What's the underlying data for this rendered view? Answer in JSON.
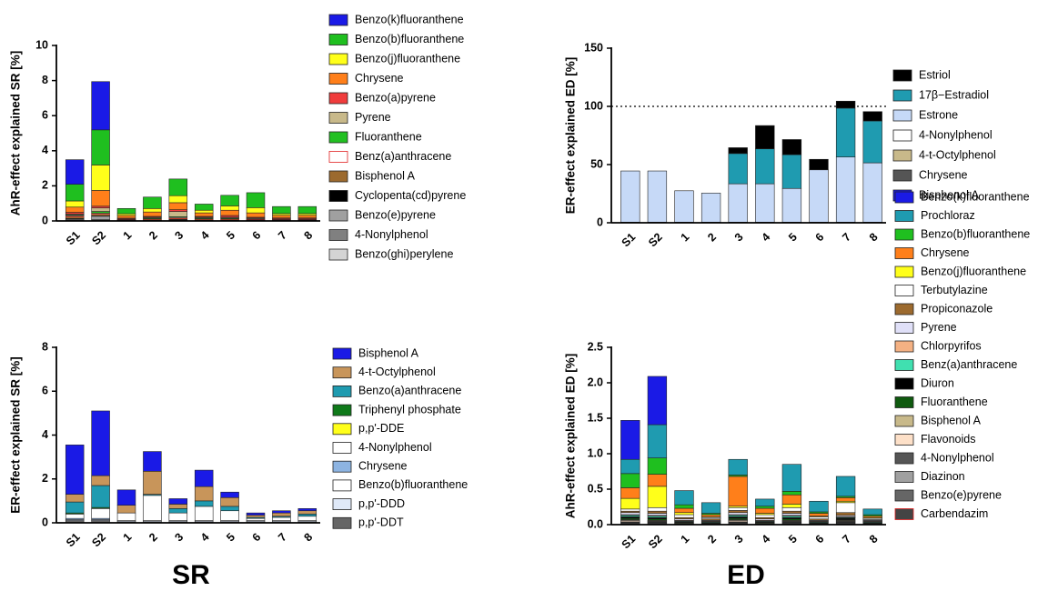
{
  "panel_labels": [
    "SR",
    "ED"
  ],
  "chart_data": [
    {
      "type": "bar",
      "stacked": true,
      "ylabel": "AhR-effect explained SR [%]",
      "categories": [
        "S1",
        "S2",
        "1",
        "2",
        "3",
        "4",
        "5",
        "6",
        "7",
        "8"
      ],
      "ylim": [
        0,
        10
      ],
      "yticks": [
        0,
        2,
        4,
        6,
        8,
        10
      ],
      "series": [
        {
          "name": "Benzo(k)fluoranthene",
          "color": "#1a1ae6",
          "values": [
            1.4,
            2.75,
            0,
            0,
            0,
            0,
            0,
            0,
            0,
            0
          ]
        },
        {
          "name": "Benzo(b)fluoranthene",
          "color": "#1fbf1f",
          "values": [
            0.95,
            2.0,
            0.3,
            0.65,
            0.95,
            0.35,
            0.6,
            0.85,
            0.4,
            0.4
          ]
        },
        {
          "name": "Benzo(j)fluoranthene",
          "color": "#ffff1a",
          "values": [
            0.35,
            1.45,
            0.1,
            0.2,
            0.4,
            0.15,
            0.25,
            0.3,
            0.1,
            0.1
          ]
        },
        {
          "name": "Chrysene",
          "color": "#ff7f1a",
          "values": [
            0.3,
            0.9,
            0.15,
            0.25,
            0.4,
            0.2,
            0.3,
            0.25,
            0.15,
            0.15
          ]
        },
        {
          "name": "Benzo(a)pyrene",
          "color": "#f03c3c",
          "values": [
            0.1,
            0.1,
            0.05,
            0.05,
            0.1,
            0.05,
            0.1,
            0.05,
            0.05,
            0.05
          ]
        },
        {
          "name": "Pyrene",
          "color": "#c8b98a",
          "values": [
            0.05,
            0.2,
            0.02,
            0.05,
            0.3,
            0.05,
            0.05,
            0.05,
            0.02,
            0.02
          ]
        },
        {
          "name": "Fluoranthene",
          "color": "#22c022",
          "values": [
            0.05,
            0.1,
            0.01,
            0.05,
            0.05,
            0.05,
            0.05,
            0.02,
            0.02,
            0.02
          ]
        },
        {
          "name": "Benz(a)anthracene",
          "color": "#ffffff",
          "edgecolor": "#e02020",
          "values": [
            0.05,
            0.05,
            0.01,
            0.02,
            0.05,
            0.02,
            0.02,
            0.02,
            0.01,
            0.01
          ]
        },
        {
          "name": "Bisphenol A",
          "color": "#9c6a2e",
          "values": [
            0.1,
            0.1,
            0.03,
            0.05,
            0.05,
            0.05,
            0.05,
            0.03,
            0.03,
            0.03
          ]
        },
        {
          "name": "Cyclopenta(cd)pyrene",
          "color": "#000000",
          "values": [
            0.02,
            0.02,
            0.01,
            0.01,
            0.02,
            0.01,
            0.01,
            0.01,
            0.01,
            0.01
          ]
        },
        {
          "name": "Benzo(e)pyrene",
          "color": "#a0a0a0",
          "values": [
            0.05,
            0.2,
            0.01,
            0.01,
            0.03,
            0.01,
            0.01,
            0.01,
            0.01,
            0.01
          ]
        },
        {
          "name": "4-Nonylphenol",
          "color": "#808080",
          "values": [
            0.02,
            0.02,
            0.01,
            0.01,
            0.01,
            0.01,
            0.01,
            0.01,
            0.01,
            0.01
          ]
        },
        {
          "name": "Benzo(ghi)perylene",
          "color": "#d4d4d4",
          "values": [
            0.05,
            0.05,
            0.01,
            0.01,
            0.03,
            0.01,
            0.01,
            0.01,
            0.01,
            0.01
          ]
        }
      ]
    },
    {
      "type": "bar",
      "stacked": true,
      "ylabel": "ER-effect explained ED [%]",
      "categories": [
        "S1",
        "S2",
        "1",
        "2",
        "3",
        "4",
        "5",
        "6",
        "7",
        "8"
      ],
      "ylim": [
        0,
        150
      ],
      "yticks": [
        0,
        50,
        100,
        150
      ],
      "reference_line": 100,
      "series": [
        {
          "name": "Estriol",
          "color": "#000000",
          "values": [
            0,
            0,
            0,
            0,
            5,
            20,
            13,
            9,
            6,
            8
          ]
        },
        {
          "name": "17β−Estradiol",
          "color": "#1f9bb0",
          "values": [
            0,
            0,
            0,
            0,
            26,
            30,
            29,
            0,
            42,
            36
          ]
        },
        {
          "name": "Estrone",
          "color": "#c6d9f7",
          "values": [
            44,
            44,
            27,
            25,
            33,
            33,
            29,
            45,
            56,
            51
          ]
        },
        {
          "name": "4-Nonylphenol",
          "color": "#ffffff",
          "values": [
            0,
            0,
            0,
            0,
            0,
            0,
            0,
            0,
            0,
            0
          ]
        },
        {
          "name": "4-t-Octylphenol",
          "color": "#c8b98a",
          "values": [
            0,
            0,
            0,
            0,
            0,
            0,
            0,
            0,
            0,
            0
          ]
        },
        {
          "name": "Chrysene",
          "color": "#555555",
          "values": [
            0,
            0,
            0,
            0,
            0,
            0,
            0,
            0,
            0,
            0
          ]
        },
        {
          "name": "Bisphenol A",
          "color": "#1a1ae6",
          "values": [
            0.5,
            0.5,
            0.5,
            0.5,
            0.5,
            0.5,
            0.5,
            0.5,
            0.5,
            0.5
          ]
        }
      ]
    },
    {
      "type": "bar",
      "stacked": true,
      "ylabel": "ER-effect explained SR [%]",
      "categories": [
        "S1",
        "S2",
        "1",
        "2",
        "3",
        "4",
        "5",
        "6",
        "7",
        "8"
      ],
      "ylim": [
        0,
        8
      ],
      "yticks": [
        0,
        2,
        4,
        6,
        8
      ],
      "series": [
        {
          "name": "Bisphenol A",
          "color": "#1a1ae6",
          "values": [
            2.25,
            2.95,
            0.7,
            0.9,
            0.25,
            0.75,
            0.25,
            0.1,
            0.1,
            0.1
          ]
        },
        {
          "name": "4-t-Octylphenol",
          "color": "#c8955a",
          "values": [
            0.35,
            0.45,
            0.35,
            1.05,
            0.2,
            0.65,
            0.4,
            0.1,
            0.15,
            0.15
          ]
        },
        {
          "name": "Benzo(a)anthracene",
          "color": "#1f9bb0",
          "values": [
            0.5,
            1.0,
            0,
            0.05,
            0.2,
            0.25,
            0.2,
            0.05,
            0.05,
            0.1
          ]
        },
        {
          "name": "Triphenyl phosphate",
          "color": "#0f7a1a",
          "values": [
            0.05,
            0.05,
            0,
            0,
            0,
            0,
            0,
            0,
            0,
            0
          ]
        },
        {
          "name": "p,p'-DDE",
          "color": "#ffff1a",
          "values": [
            0,
            0,
            0,
            0,
            0,
            0,
            0,
            0,
            0,
            0
          ]
        },
        {
          "name": "4-Nonylphenol",
          "color": "#ffffff",
          "values": [
            0.2,
            0.45,
            0.35,
            1.15,
            0.35,
            0.65,
            0.45,
            0.1,
            0.15,
            0.2
          ]
        },
        {
          "name": "Chrysene",
          "color": "#8db4e2",
          "values": [
            0.05,
            0.05,
            0,
            0,
            0,
            0,
            0,
            0,
            0,
            0
          ]
        },
        {
          "name": "Benzo(b)fluoranthene",
          "color": "#ffffff",
          "values": [
            0,
            0,
            0,
            0,
            0,
            0,
            0,
            0,
            0,
            0
          ]
        },
        {
          "name": "p,p'-DDD",
          "color": "#dfe9f8",
          "values": [
            0.05,
            0.05,
            0.05,
            0.05,
            0.05,
            0.05,
            0.05,
            0.05,
            0.05,
            0.05
          ]
        },
        {
          "name": "p,p'-DDT",
          "color": "#666666",
          "values": [
            0.1,
            0.1,
            0.05,
            0.05,
            0.05,
            0.05,
            0.05,
            0.05,
            0.05,
            0.05
          ]
        }
      ]
    },
    {
      "type": "bar",
      "stacked": true,
      "ylabel": "AhR-effect explained ED  [%]",
      "categories": [
        "S1",
        "S2",
        "1",
        "2",
        "3",
        "4",
        "5",
        "6",
        "7",
        "8"
      ],
      "ylim": [
        0,
        2.5
      ],
      "yticks": [
        {
          "value": 0,
          "label": "0.0"
        },
        0.5,
        {
          "value": 1,
          "label": "1.0"
        },
        1.5,
        {
          "value": 2,
          "label": "2.0"
        },
        2.5
      ],
      "series": [
        {
          "name": "Benzo(k)fluoranthene",
          "color": "#1a1ae6",
          "values": [
            0.55,
            0.68,
            0,
            0,
            0,
            0,
            0,
            0,
            0,
            0
          ]
        },
        {
          "name": "Prochloraz",
          "color": "#1f9bb0",
          "values": [
            0.2,
            0.47,
            0.2,
            0.15,
            0.22,
            0.1,
            0.38,
            0.15,
            0.28,
            0.08
          ]
        },
        {
          "name": "Benzo(b)fluoranthene",
          "color": "#1fbf1f",
          "values": [
            0.2,
            0.23,
            0.05,
            0.02,
            0.02,
            0.03,
            0.05,
            0.02,
            0.02,
            0.02
          ]
        },
        {
          "name": "Chrysene",
          "color": "#ff7f1a",
          "values": [
            0.15,
            0.17,
            0.06,
            0.03,
            0.42,
            0.07,
            0.13,
            0.04,
            0.05,
            0.02
          ]
        },
        {
          "name": "Benzo(j)fluoranthene",
          "color": "#ffff1a",
          "values": [
            0.15,
            0.3,
            0.03,
            0.01,
            0.02,
            0.02,
            0.05,
            0.01,
            0.02,
            0.01
          ]
        },
        {
          "name": "Terbutylazine",
          "color": "#ffffff",
          "values": [
            0.03,
            0.05,
            0.04,
            0.02,
            0.04,
            0.04,
            0.05,
            0.03,
            0.14,
            0.02
          ]
        },
        {
          "name": "Propiconazole",
          "color": "#9c6a2e",
          "values": [
            0.02,
            0.03,
            0.02,
            0.02,
            0.03,
            0.02,
            0.03,
            0.02,
            0.04,
            0.01
          ]
        },
        {
          "name": "Pyrene",
          "color": "#e0e0f8",
          "values": [
            0.03,
            0.03,
            0.02,
            0.01,
            0.03,
            0.02,
            0.03,
            0.01,
            0.02,
            0.01
          ]
        },
        {
          "name": "Chlorpyrifos",
          "color": "#f4b183",
          "values": [
            0.01,
            0.01,
            0.01,
            0.01,
            0.01,
            0.01,
            0.01,
            0.01,
            0.01,
            0.01
          ]
        },
        {
          "name": "Benz(a)anthracene",
          "color": "#40e0b0",
          "values": [
            0.02,
            0.02,
            0.01,
            0.01,
            0.02,
            0.01,
            0.02,
            0.01,
            0.01,
            0.01
          ]
        },
        {
          "name": "Diuron",
          "color": "#000000",
          "values": [
            0.02,
            0.02,
            0.01,
            0.01,
            0.02,
            0.01,
            0.02,
            0.01,
            0.02,
            0.01
          ]
        },
        {
          "name": "Fluoranthene",
          "color": "#0f5a0f",
          "values": [
            0.02,
            0.02,
            0.01,
            0.01,
            0.02,
            0.01,
            0.02,
            0.01,
            0.01,
            0.01
          ]
        },
        {
          "name": "Bisphenol A",
          "color": "#c8b98a",
          "values": [
            0.01,
            0.01,
            0.01,
            0.01,
            0.01,
            0.01,
            0.01,
            0.01,
            0.01,
            0.01
          ]
        },
        {
          "name": "Flavonoids",
          "color": "#fde0c8",
          "values": [
            0.02,
            0.01,
            0.01,
            0,
            0.02,
            0.01,
            0.01,
            0,
            0.01,
            0
          ]
        },
        {
          "name": "4-Nonylphenol",
          "color": "#555555",
          "values": [
            0.01,
            0.01,
            0,
            0,
            0.01,
            0,
            0.01,
            0,
            0.01,
            0
          ]
        },
        {
          "name": "Diazinon",
          "color": "#a0a0a0",
          "values": [
            0.01,
            0.01,
            0,
            0,
            0.01,
            0,
            0.01,
            0,
            0.01,
            0
          ]
        },
        {
          "name": "Benzo(e)pyrene",
          "color": "#666666",
          "values": [
            0.01,
            0.01,
            0,
            0,
            0.01,
            0,
            0.01,
            0,
            0.01,
            0
          ]
        },
        {
          "name": "Carbendazim",
          "color": "#444444",
          "edgecolor": "#e02020",
          "values": [
            0.01,
            0.01,
            0,
            0,
            0.01,
            0,
            0.01,
            0,
            0.01,
            0
          ]
        }
      ]
    }
  ]
}
